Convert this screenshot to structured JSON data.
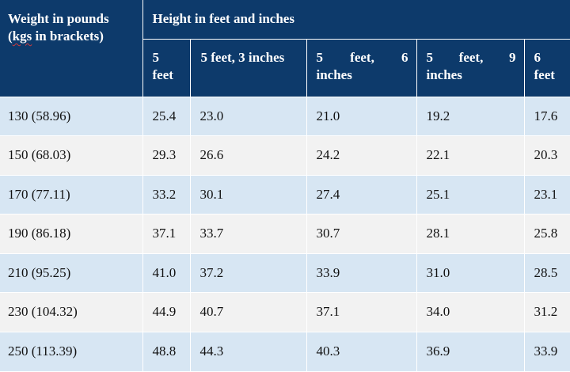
{
  "table": {
    "weight_header_line1": "Weight in pounds",
    "weight_header_line2_word": "kgs",
    "weight_header_line2_prefix": "(",
    "weight_header_line2_rest": " in brackets)",
    "height_header": "Height in feet and inches",
    "columns": [
      {
        "line1": "5",
        "line2": "feet"
      },
      {
        "line1": "5 feet, 3 inches",
        "line2": ""
      },
      {
        "line1a": "5",
        "line1b": "feet,",
        "line1c": "6",
        "line2": "inches"
      },
      {
        "line1a": "5",
        "line1b": "feet,",
        "line1c": "9",
        "line2": "inches"
      },
      {
        "line1": "6",
        "line2": "feet"
      }
    ],
    "rows": [
      {
        "weight": "130 (58.96)",
        "values": [
          "25.4",
          "23.0",
          "21.0",
          "19.2",
          "17.6"
        ]
      },
      {
        "weight": "150 (68.03)",
        "values": [
          "29.3",
          "26.6",
          "24.2",
          "22.1",
          "20.3"
        ]
      },
      {
        "weight": "170 (77.11)",
        "values": [
          "33.2",
          "30.1",
          "27.4",
          "25.1",
          "23.1"
        ]
      },
      {
        "weight": "190 (86.18)",
        "values": [
          "37.1",
          "33.7",
          "30.7",
          "28.1",
          "25.8"
        ]
      },
      {
        "weight": "210 (95.25)",
        "values": [
          "41.0",
          "37.2",
          "33.9",
          "31.0",
          "28.5"
        ]
      },
      {
        "weight": "230 (104.32)",
        "values": [
          "44.9",
          "40.7",
          "37.1",
          "34.0",
          "31.2"
        ]
      },
      {
        "weight": "250 (113.39)",
        "values": [
          "48.8",
          "44.3",
          "40.3",
          "36.9",
          "33.9"
        ]
      }
    ]
  }
}
